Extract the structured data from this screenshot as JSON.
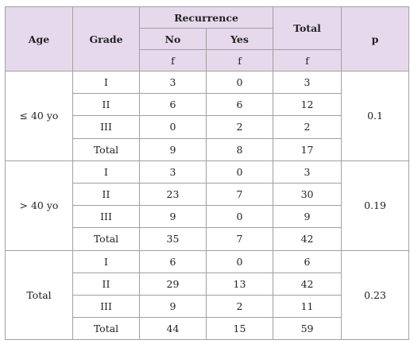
{
  "header": {
    "age": "Age",
    "grade": "Grade",
    "recurrence": "Recurrence",
    "no": "No",
    "yes": "Yes",
    "total": "Total",
    "p": "p",
    "units": [
      "f",
      "f",
      "f"
    ]
  },
  "groups": [
    {
      "age": "≤ 40 yo",
      "p": 0.1,
      "rows": [
        [
          "I",
          3,
          0,
          3
        ],
        [
          "II",
          6,
          6,
          12
        ],
        [
          "III",
          0,
          2,
          2
        ],
        [
          "Total",
          9,
          8,
          17
        ]
      ]
    },
    {
      "age": "> 40 yo",
      "p": 0.19,
      "rows": [
        [
          "I",
          3,
          0,
          3
        ],
        [
          "II",
          23,
          7,
          30
        ],
        [
          "III",
          9,
          0,
          9
        ],
        [
          "Total",
          35,
          7,
          42
        ]
      ]
    },
    {
      "age": "Total",
      "p": 0.23,
      "rows": [
        [
          "I",
          6,
          0,
          6
        ],
        [
          "II",
          29,
          13,
          42
        ],
        [
          "III",
          9,
          2,
          11
        ],
        [
          "Total",
          44,
          15,
          59
        ]
      ]
    }
  ]
}
